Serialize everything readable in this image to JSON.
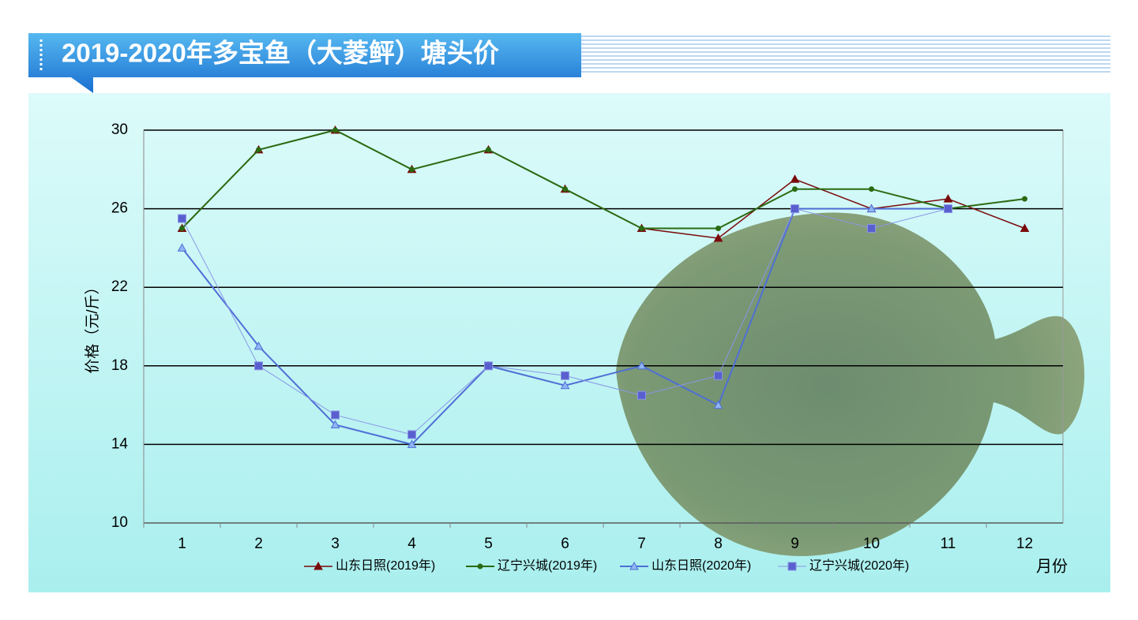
{
  "chart_data": {
    "type": "line",
    "title": "2019-2020年多宝鱼（大菱鲆）塘头价",
    "y_label": "价格（元/斤）",
    "x_label": "月份",
    "categories": [
      "1",
      "2",
      "3",
      "4",
      "5",
      "6",
      "7",
      "8",
      "9",
      "10",
      "11",
      "12"
    ],
    "series": [
      {
        "name": "山东日照(2019年)",
        "color": "#7a0a0a",
        "marker": "triangle",
        "marker_fill": "#7a0a0a",
        "line_width": 1.5,
        "values": [
          25,
          29,
          30,
          28,
          29,
          27,
          25,
          24.5,
          27.5,
          26,
          26.5,
          25
        ]
      },
      {
        "name": "辽宁兴城(2019年)",
        "color": "#2b6a12",
        "marker": "circle",
        "marker_fill": "#2b6a12",
        "line_width": 2,
        "values": [
          25,
          29,
          30,
          28,
          29,
          27,
          25,
          25,
          27,
          27,
          26,
          26.5
        ]
      },
      {
        "name": "山东日照(2020年)",
        "color": "#4f6fd6",
        "marker": "triangle",
        "marker_fill": "#8fb6f2",
        "line_width": 2,
        "values": [
          24,
          19,
          15,
          14,
          18,
          17,
          18,
          16,
          26,
          26,
          26,
          null
        ]
      },
      {
        "name": "辽宁兴城(2020年)",
        "color": "#8a96e6",
        "marker": "square",
        "marker_fill": "#5a5fcf",
        "line_width": 1,
        "values": [
          25.5,
          18,
          15.5,
          14.5,
          18,
          17.5,
          16.5,
          17.5,
          26,
          25,
          26,
          null
        ]
      }
    ],
    "ylim": [
      10,
      30
    ],
    "yticks": [
      10,
      14,
      18,
      22,
      26,
      30
    ],
    "grid": true
  }
}
